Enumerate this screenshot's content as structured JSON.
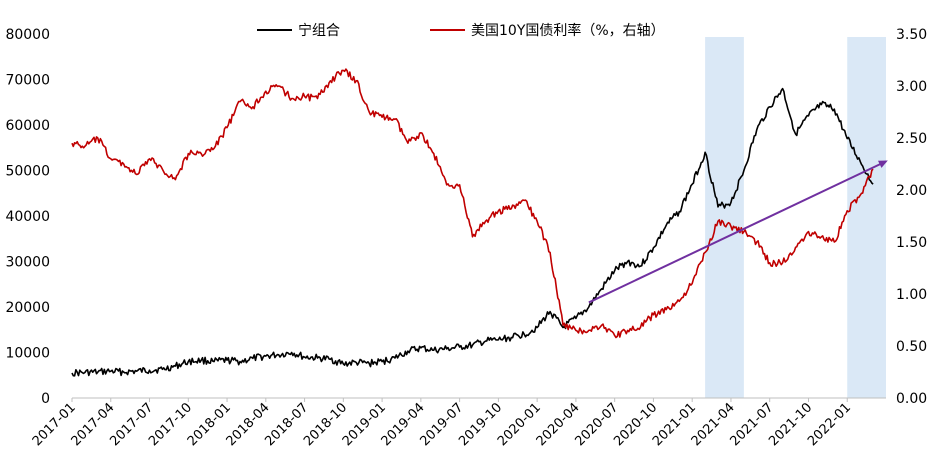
{
  "chart_data": {
    "type": "line",
    "legend_position": "top",
    "series": [
      {
        "name": "宁组合",
        "axis": "left",
        "color": "#000000",
        "points": [
          [
            "2017-01",
            5500
          ],
          [
            "2017-02",
            5600
          ],
          [
            "2017-03",
            5700
          ],
          [
            "2017-04",
            5900
          ],
          [
            "2017-05",
            5700
          ],
          [
            "2017-06",
            5900
          ],
          [
            "2017-07",
            6100
          ],
          [
            "2017-08",
            6300
          ],
          [
            "2017-09",
            7000
          ],
          [
            "2017-10",
            8000
          ],
          [
            "2017-11",
            8300
          ],
          [
            "2017-12",
            8000
          ],
          [
            "2018-01",
            8300
          ],
          [
            "2018-02",
            8000
          ],
          [
            "2018-03",
            8700
          ],
          [
            "2018-04",
            9200
          ],
          [
            "2018-05",
            9500
          ],
          [
            "2018-06",
            10000
          ],
          [
            "2018-07",
            9000
          ],
          [
            "2018-08",
            8800
          ],
          [
            "2018-09",
            8500
          ],
          [
            "2018-10",
            7500
          ],
          [
            "2018-11",
            7800
          ],
          [
            "2018-12",
            7600
          ],
          [
            "2019-01",
            8000
          ],
          [
            "2019-02",
            8800
          ],
          [
            "2019-03",
            10300
          ],
          [
            "2019-04",
            11000
          ],
          [
            "2019-05",
            10500
          ],
          [
            "2019-06",
            10800
          ],
          [
            "2019-07",
            11200
          ],
          [
            "2019-08",
            11600
          ],
          [
            "2019-09",
            12500
          ],
          [
            "2019-10",
            12800
          ],
          [
            "2019-11",
            13300
          ],
          [
            "2019-12",
            14000
          ],
          [
            "2020-01",
            15500
          ],
          [
            "2020-02",
            19000
          ],
          [
            "2020-03",
            15500
          ],
          [
            "2020-04",
            17500
          ],
          [
            "2020-05",
            20000
          ],
          [
            "2020-06",
            24000
          ],
          [
            "2020-07",
            28000
          ],
          [
            "2020-08",
            30000
          ],
          [
            "2020-09",
            29000
          ],
          [
            "2020-10",
            33000
          ],
          [
            "2020-11",
            38000
          ],
          [
            "2020-12",
            41000
          ],
          [
            "2021-01",
            47000
          ],
          [
            "2021-02",
            54000
          ],
          [
            "2021-03",
            42000
          ],
          [
            "2021-04",
            43000
          ],
          [
            "2021-05",
            50000
          ],
          [
            "2021-06",
            59000
          ],
          [
            "2021-07",
            64000
          ],
          [
            "2021-08",
            68000
          ],
          [
            "2021-09",
            58000
          ],
          [
            "2021-10",
            62000
          ],
          [
            "2021-11",
            64500
          ],
          [
            "2021-12",
            63500
          ],
          [
            "2022-01",
            57000
          ],
          [
            "2022-02",
            52000
          ],
          [
            "2022-03",
            47000
          ]
        ]
      },
      {
        "name": "美国10Y国债利率（%，右轴）",
        "axis": "right",
        "color": "#c00000",
        "points": [
          [
            "2017-01",
            2.45
          ],
          [
            "2017-02",
            2.42
          ],
          [
            "2017-03",
            2.5
          ],
          [
            "2017-04",
            2.3
          ],
          [
            "2017-05",
            2.25
          ],
          [
            "2017-06",
            2.15
          ],
          [
            "2017-07",
            2.3
          ],
          [
            "2017-08",
            2.2
          ],
          [
            "2017-09",
            2.1
          ],
          [
            "2017-10",
            2.35
          ],
          [
            "2017-11",
            2.35
          ],
          [
            "2017-12",
            2.4
          ],
          [
            "2018-01",
            2.6
          ],
          [
            "2018-02",
            2.85
          ],
          [
            "2018-03",
            2.8
          ],
          [
            "2018-04",
            2.95
          ],
          [
            "2018-05",
            3.0
          ],
          [
            "2018-06",
            2.88
          ],
          [
            "2018-07",
            2.9
          ],
          [
            "2018-08",
            2.88
          ],
          [
            "2018-09",
            3.05
          ],
          [
            "2018-10",
            3.15
          ],
          [
            "2018-11",
            3.05
          ],
          [
            "2018-12",
            2.75
          ],
          [
            "2019-01",
            2.7
          ],
          [
            "2019-02",
            2.68
          ],
          [
            "2019-03",
            2.45
          ],
          [
            "2019-04",
            2.55
          ],
          [
            "2019-05",
            2.35
          ],
          [
            "2019-06",
            2.05
          ],
          [
            "2019-07",
            2.05
          ],
          [
            "2019-08",
            1.55
          ],
          [
            "2019-09",
            1.7
          ],
          [
            "2019-10",
            1.8
          ],
          [
            "2019-11",
            1.82
          ],
          [
            "2019-12",
            1.9
          ],
          [
            "2020-01",
            1.7
          ],
          [
            "2020-02",
            1.4
          ],
          [
            "2020-03",
            0.7
          ],
          [
            "2020-04",
            0.65
          ],
          [
            "2020-05",
            0.65
          ],
          [
            "2020-06",
            0.7
          ],
          [
            "2020-07",
            0.6
          ],
          [
            "2020-08",
            0.65
          ],
          [
            "2020-09",
            0.68
          ],
          [
            "2020-10",
            0.8
          ],
          [
            "2020-11",
            0.85
          ],
          [
            "2020-12",
            0.93
          ],
          [
            "2021-01",
            1.1
          ],
          [
            "2021-02",
            1.4
          ],
          [
            "2021-03",
            1.7
          ],
          [
            "2021-04",
            1.65
          ],
          [
            "2021-05",
            1.6
          ],
          [
            "2021-06",
            1.5
          ],
          [
            "2021-07",
            1.3
          ],
          [
            "2021-08",
            1.3
          ],
          [
            "2021-09",
            1.45
          ],
          [
            "2021-10",
            1.6
          ],
          [
            "2021-11",
            1.55
          ],
          [
            "2021-12",
            1.5
          ],
          [
            "2022-01",
            1.8
          ],
          [
            "2022-02",
            1.95
          ],
          [
            "2022-03",
            2.2
          ]
        ]
      }
    ],
    "trend_arrow": {
      "color": "#7030a0",
      "from": [
        "2020-05",
        21000
      ],
      "to": [
        "2022-04",
        52000
      ]
    },
    "shaded_periods": [
      {
        "start": "2021-02",
        "end": "2021-05"
      },
      {
        "start": "2022-01",
        "end": "2022-04"
      }
    ],
    "shade_color": "#dae8f6",
    "x_range": [
      "2017-01",
      "2022-04"
    ],
    "x_tick_labels": [
      "2017-01",
      "2017-04",
      "2017-07",
      "2017-10",
      "2018-01",
      "2018-04",
      "2018-07",
      "2018-10",
      "2019-01",
      "2019-04",
      "2019-07",
      "2019-10",
      "2020-01",
      "2020-04",
      "2020-07",
      "2020-10",
      "2021-01",
      "2021-04",
      "2021-07",
      "2021-10",
      "2022-01"
    ],
    "y_left": {
      "min": 0,
      "max": 80000,
      "ticks": [
        "0",
        "10000",
        "20000",
        "30000",
        "40000",
        "50000",
        "60000",
        "70000",
        "80000"
      ]
    },
    "y_right": {
      "min": 0,
      "max": 3.5,
      "ticks": [
        "0.00",
        "0.50",
        "1.00",
        "1.50",
        "2.00",
        "2.50",
        "3.00",
        "3.50"
      ]
    },
    "grid": false
  }
}
